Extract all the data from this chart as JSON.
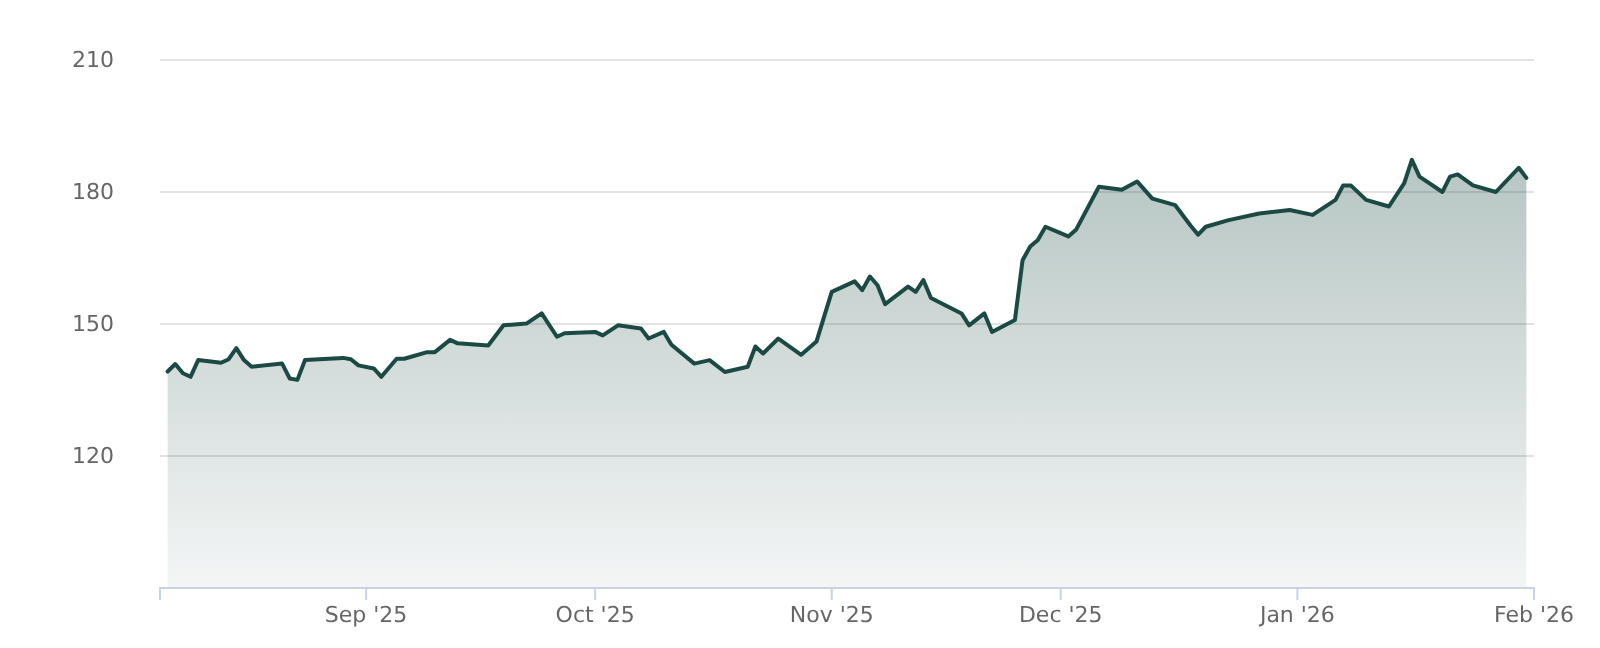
{
  "chart_data": {
    "type": "area",
    "xlim": [
      "2025-08-05",
      "2026-02-01"
    ],
    "xticks": [
      {
        "value": "2025-09-01",
        "label": "Sep '25"
      },
      {
        "value": "2025-10-01",
        "label": "Oct '25"
      },
      {
        "value": "2025-11-01",
        "label": "Nov '25"
      },
      {
        "value": "2025-12-01",
        "label": "Dec '25"
      },
      {
        "value": "2026-01-01",
        "label": "Jan '26"
      },
      {
        "value": "2026-02-01",
        "label": "Feb '26"
      }
    ],
    "ylim": [
      90,
      210
    ],
    "yticks": [
      120,
      150,
      180,
      210
    ],
    "grid": "y",
    "x": [
      "2025-08-06",
      "2025-08-07",
      "2025-08-08",
      "2025-08-09",
      "2025-08-10",
      "2025-08-13",
      "2025-08-14",
      "2025-08-15",
      "2025-08-16",
      "2025-08-17",
      "2025-08-21",
      "2025-08-22",
      "2025-08-23",
      "2025-08-24",
      "2025-08-29",
      "2025-08-30",
      "2025-08-31",
      "2025-09-02",
      "2025-09-03",
      "2025-09-05",
      "2025-09-06",
      "2025-09-09",
      "2025-09-10",
      "2025-09-12",
      "2025-09-13",
      "2025-09-17",
      "2025-09-19",
      "2025-09-22",
      "2025-09-24",
      "2025-09-26",
      "2025-09-27",
      "2025-10-01",
      "2025-10-02",
      "2025-10-04",
      "2025-10-07",
      "2025-10-08",
      "2025-10-10",
      "2025-10-11",
      "2025-10-14",
      "2025-10-16",
      "2025-10-18",
      "2025-10-21",
      "2025-10-22",
      "2025-10-23",
      "2025-10-25",
      "2025-10-28",
      "2025-10-30",
      "2025-11-01",
      "2025-11-04",
      "2025-11-05",
      "2025-11-06",
      "2025-11-07",
      "2025-11-08",
      "2025-11-11",
      "2025-11-12",
      "2025-11-13",
      "2025-11-14",
      "2025-11-18",
      "2025-11-19",
      "2025-11-21",
      "2025-11-22",
      "2025-11-25",
      "2025-11-26",
      "2025-11-27",
      "2025-11-28",
      "2025-11-29",
      "2025-12-02",
      "2025-12-03",
      "2025-12-06",
      "2025-12-09",
      "2025-12-11",
      "2025-12-13",
      "2025-12-16",
      "2025-12-18",
      "2025-12-19",
      "2025-12-20",
      "2025-12-23",
      "2025-12-27",
      "2025-12-31",
      "2026-01-03",
      "2026-01-06",
      "2026-01-07",
      "2026-01-08",
      "2026-01-10",
      "2026-01-13",
      "2026-01-15",
      "2026-01-16",
      "2026-01-17",
      "2026-01-20",
      "2026-01-21",
      "2026-01-22",
      "2026-01-24",
      "2026-01-27",
      "2026-01-30",
      "2026-01-31"
    ],
    "series": [
      {
        "color": "#1b4a45",
        "values": [
          139.2,
          140.9,
          138.8,
          138.0,
          141.8,
          141.2,
          142.0,
          144.5,
          141.8,
          140.3,
          141.0,
          137.6,
          137.3,
          141.8,
          142.3,
          142.0,
          140.6,
          139.9,
          138.0,
          142.1,
          142.1,
          143.6,
          143.6,
          146.4,
          145.6,
          145.1,
          149.7,
          150.1,
          152.4,
          147.1,
          147.9,
          148.2,
          147.4,
          149.7,
          149.0,
          146.7,
          148.2,
          145.3,
          141.0,
          141.8,
          139.1,
          140.3,
          144.9,
          143.3,
          146.7,
          143.0,
          146.0,
          157.3,
          159.7,
          157.7,
          160.8,
          158.8,
          154.5,
          158.5,
          157.3,
          160.0,
          155.9,
          152.4,
          149.7,
          152.4,
          148.2,
          150.9,
          164.5,
          167.6,
          169.1,
          172.1,
          169.9,
          171.4,
          181.2,
          180.5,
          182.4,
          178.5,
          177.0,
          172.4,
          170.3,
          172.1,
          173.6,
          175.1,
          175.9,
          174.8,
          178.2,
          181.5,
          181.5,
          178.2,
          176.7,
          182.0,
          187.3,
          183.5,
          180.0,
          183.5,
          184.0,
          181.5,
          180.0,
          185.5,
          183.2
        ]
      }
    ]
  }
}
